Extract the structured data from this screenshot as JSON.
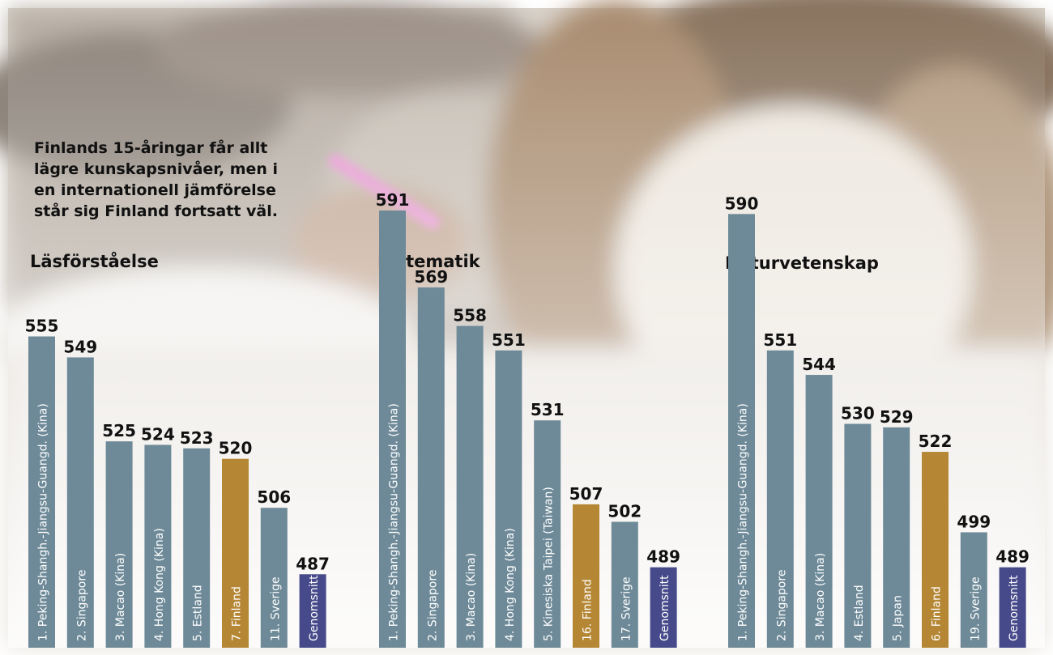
{
  "intro": {
    "lines": [
      "Finlands 15-åringar får allt",
      "lägre kunskapsnivåer, men i",
      "en internationell jämförelse",
      "står sig Finland fortsatt väl."
    ]
  },
  "colors": {
    "default": "#6e8a98",
    "finland": "#b58734",
    "average": "#464a8a",
    "label": "#ffffff",
    "value": "#111111"
  },
  "chart_data": [
    {
      "type": "bar",
      "title": "Läsförståelse",
      "categories": [
        "1. Peking-Shangh.-Jiangsu-Guangd. (Kina)",
        "2. Singapore",
        "3. Macao (Kina)",
        "4. Hong Kong (Kina)",
        "5. Estland",
        "7. Finland",
        "11. Sverige",
        "Genomsnitt"
      ],
      "values": [
        555,
        549,
        525,
        524,
        523,
        520,
        506,
        487
      ],
      "highlight": [
        "default",
        "default",
        "default",
        "default",
        "default",
        "finland",
        "default",
        "average"
      ]
    },
    {
      "type": "bar",
      "title": "Matematik",
      "categories": [
        "1. Peking-Shangh.-Jiangsu-Guangd. (Kina)",
        "2. Singapore",
        "3. Macao (Kina)",
        "4. Hong Kong (Kina)",
        "5. Kinesiska Taipei (Taiwan)",
        "16. Finland",
        "17. Sverige",
        "Genomsnitt"
      ],
      "values": [
        591,
        569,
        558,
        551,
        531,
        507,
        502,
        489
      ],
      "highlight": [
        "default",
        "default",
        "default",
        "default",
        "default",
        "finland",
        "default",
        "average"
      ]
    },
    {
      "type": "bar",
      "title": "Naturvetenskap",
      "categories": [
        "1. Peking-Shangh.-Jiangsu-Guangd. (Kina)",
        "2. Singapore",
        "3. Macao (Kina)",
        "4. Estland",
        "5. Japan",
        "6. Finland",
        "19. Sverige",
        "Genomsnitt"
      ],
      "values": [
        590,
        551,
        544,
        530,
        529,
        522,
        499,
        489
      ],
      "highlight": [
        "default",
        "default",
        "default",
        "default",
        "default",
        "finland",
        "default",
        "average"
      ]
    }
  ]
}
